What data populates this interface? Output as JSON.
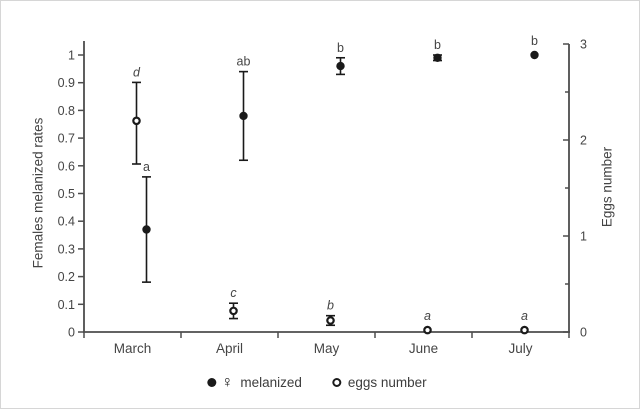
{
  "colors": {
    "marker": "#1a1a1a",
    "axis_line": "#4d4d4d",
    "text": "#454545",
    "background": "#ffffff"
  },
  "chart_data": {
    "type": "scatter",
    "categories": [
      "March",
      "April",
      "May",
      "June",
      "July"
    ],
    "left_axis": {
      "label": "Females melanized rates",
      "range": [
        0,
        1
      ],
      "tick_values": [
        1,
        0.9,
        0.8,
        0.7,
        0.6,
        0.5,
        0.4,
        0.3,
        0.2,
        0.1,
        0
      ],
      "tick_labels": [
        "1",
        "0.9",
        "0.8",
        "0.7",
        "0.6",
        "0.5",
        "0.4",
        "0.3",
        "0.2",
        "0.1",
        "0"
      ]
    },
    "right_axis": {
      "label": "Eggs number",
      "range": [
        0,
        3
      ],
      "tick_values": [
        3,
        2,
        1,
        0
      ],
      "tick_labels": [
        "3",
        "2",
        "1",
        "0"
      ],
      "minor_tick_values": [
        2.5,
        1.5,
        0.5
      ]
    },
    "series": [
      {
        "name": "melanized",
        "axis": "left",
        "marker": "filled-circle",
        "values": [
          0.37,
          0.78,
          0.96,
          0.99,
          1.0
        ],
        "ci_low": [
          0.18,
          0.62,
          0.93,
          0.98,
          null
        ],
        "ci_high": [
          0.56,
          0.94,
          0.99,
          1.0,
          null
        ],
        "letters": [
          "a",
          "ab",
          "b",
          "b",
          "b"
        ],
        "letter_style": "normal"
      },
      {
        "name": "eggs number",
        "axis": "right",
        "marker": "open-circle",
        "values": [
          2.2,
          0.22,
          0.12,
          0.02,
          0.02
        ],
        "ci_low": [
          1.75,
          0.14,
          0.07,
          null,
          null
        ],
        "ci_high": [
          2.6,
          0.3,
          0.17,
          null,
          null
        ],
        "letters": [
          "d",
          "c",
          "b",
          "a",
          "a"
        ],
        "letter_style": "italic"
      }
    ],
    "legend": {
      "items": [
        {
          "symbol": "filled-circle-female",
          "female_symbol": "♀",
          "label": "melanized"
        },
        {
          "symbol": "open-circle",
          "label": "eggs number"
        }
      ]
    },
    "grid": false,
    "legend_position": "bottom-center"
  }
}
